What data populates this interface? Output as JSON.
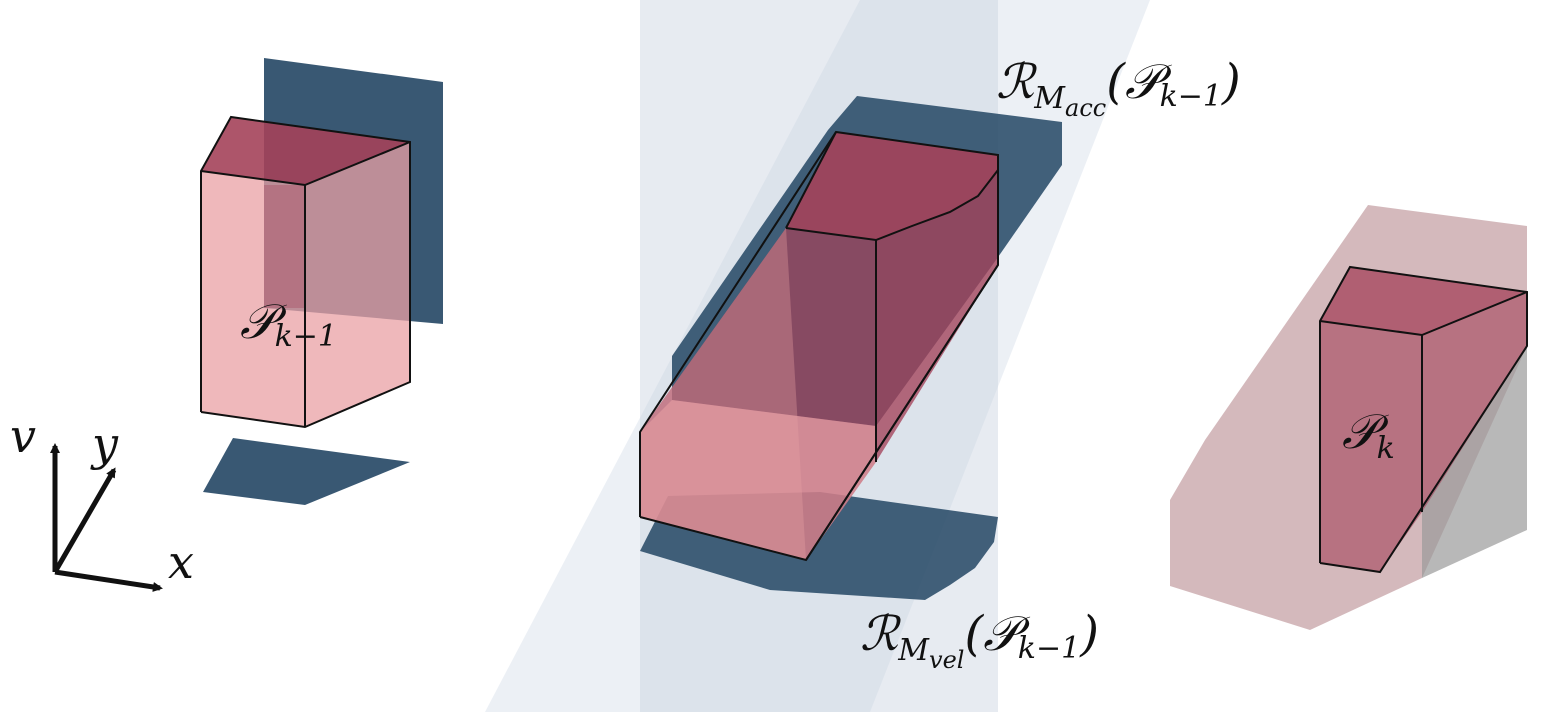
{
  "labels": {
    "p_prev": {
      "main": "𝒫",
      "sub": "k−1"
    },
    "p_next": {
      "main": "𝒫",
      "sub": "k"
    },
    "r_acc": {
      "main": "ℛ",
      "sub_main": "M",
      "sub_sub": "acc",
      "open": "(",
      "arg": "𝒫",
      "arg_sub": "k−1",
      "close": ")"
    },
    "r_vel": {
      "main": "ℛ",
      "sub_main": "M",
      "sub_sub": "vel",
      "open": "(",
      "arg": "𝒫",
      "arg_sub": "k−1",
      "close": ")"
    }
  },
  "axes": {
    "v": "v",
    "y": "y",
    "x": "x"
  },
  "colors": {
    "polytope_fill": "#e9a0a4",
    "polytope_dark": "#a4425a",
    "projection": "#234664",
    "band": "#c9d3e0",
    "result_fill": "#b78a90",
    "shadow": "#9a9a9a",
    "edge": "#111111"
  }
}
